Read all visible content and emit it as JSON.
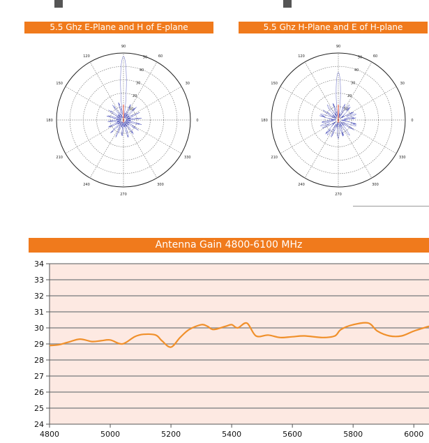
{
  "colors": {
    "banner": "#f07a1c",
    "plot_bg": "#fde9e2",
    "grid": "#8c8c8c",
    "line": "#f0902b",
    "polar_trace": "#5a5fc0",
    "polar_axis": "#e0402a"
  },
  "chart_data": [
    {
      "type": "polar",
      "title": "5.5 Ghz E-Plane and H of E-plane",
      "angle_labels": [
        "90",
        "60",
        "30",
        "0",
        "330",
        "300",
        "270",
        "240",
        "210",
        "180",
        "150",
        "120"
      ],
      "radial_labels": [
        "50",
        "40",
        "30",
        "20",
        "10"
      ]
    },
    {
      "type": "polar",
      "title": "5.5 Ghz H-Plane and E of H-plane",
      "angle_labels": [
        "90",
        "60",
        "30",
        "0",
        "330",
        "300",
        "270",
        "240",
        "210",
        "180",
        "150",
        "120"
      ],
      "radial_labels": [
        "50",
        "40",
        "30",
        "20",
        "10"
      ]
    },
    {
      "type": "line",
      "title": "Antenna Gain 4800-6100 MHz",
      "xlabel": "",
      "ylabel": "",
      "xlim": [
        4800,
        6050
      ],
      "ylim": [
        24,
        34
      ],
      "x_ticks": [
        "4800",
        "5000",
        "5200",
        "5400",
        "5600",
        "5800",
        "6000"
      ],
      "y_ticks": [
        "24",
        "25",
        "26",
        "27",
        "28",
        "29",
        "30",
        "31",
        "32",
        "33",
        "34"
      ],
      "grid": true,
      "series": [
        {
          "x": [
            4800,
            4830,
            4860,
            4900,
            4940,
            4970,
            5000,
            5040,
            5080,
            5110,
            5150,
            5170,
            5200,
            5230,
            5260,
            5300,
            5320,
            5340,
            5380,
            5400,
            5420,
            5450,
            5480,
            5520,
            5560,
            5600,
            5640,
            5700,
            5740,
            5760,
            5800,
            5850,
            5880,
            5920,
            5960,
            6000,
            6050
          ],
          "y": [
            28.9,
            28.95,
            29.1,
            29.3,
            29.15,
            29.2,
            29.25,
            29.0,
            29.45,
            29.6,
            29.55,
            29.2,
            28.8,
            29.4,
            29.9,
            30.2,
            30.1,
            29.9,
            30.1,
            30.2,
            30.0,
            30.3,
            29.5,
            29.55,
            29.4,
            29.45,
            29.5,
            29.4,
            29.5,
            29.9,
            30.2,
            30.3,
            29.8,
            29.5,
            29.5,
            29.8,
            30.1
          ]
        }
      ]
    }
  ]
}
